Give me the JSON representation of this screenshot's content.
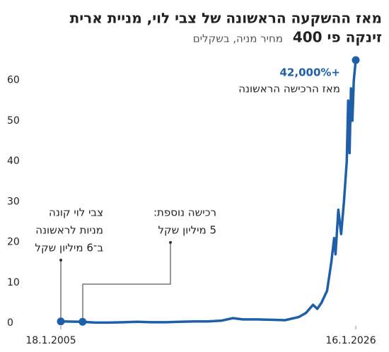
{
  "chart_data": {
    "type": "line",
    "title": [
      "מאז ההשקעה הראשונה של צבי לוי, מניית ארית",
      "זינקה פי 400"
    ],
    "subtitle": "מחיר מניה, בשקלים",
    "x": [
      2005.05,
      2006.6,
      2007.5,
      2008.5,
      2009.5,
      2010.5,
      2011.5,
      2012.5,
      2013.5,
      2014.5,
      2015.5,
      2016.5,
      2017.3,
      2018,
      2019,
      2020,
      2021,
      2022,
      2022.5,
      2023,
      2023.3,
      2023.6,
      2024,
      2024.3,
      2024.5,
      2024.6,
      2024.8,
      2025,
      2025.2,
      2025.4,
      2025.5,
      2025.6,
      2025.7,
      2025.8,
      2025.9,
      2026.04
    ],
    "series": [
      {
        "name": "ארית",
        "color": "#1f5fa8",
        "values": [
          0.4,
          0.3,
          0.1,
          0.1,
          0.2,
          0.3,
          0.2,
          0.2,
          0.3,
          0.4,
          0.4,
          0.6,
          1.2,
          0.9,
          0.9,
          0.8,
          0.7,
          1.5,
          2.5,
          4.5,
          3.5,
          5,
          8,
          15,
          21,
          17,
          28,
          22,
          30,
          40,
          55,
          42,
          58,
          50,
          60,
          65
        ]
      }
    ],
    "xlim": [
      2005.05,
      2026.04
    ],
    "xticks": [
      {
        "value": 2005.05,
        "label": "18.1.2005"
      },
      {
        "value": 2026.04,
        "label": "16.1.2026"
      }
    ],
    "ylim": [
      0,
      65
    ],
    "yticks": [
      0,
      10,
      20,
      30,
      40,
      50,
      60
    ],
    "annotations": [
      {
        "lines": [
          "+42,000%",
          "מאז הרכישה הראשונה"
        ]
      },
      {
        "lines": [
          "צבי לוי קונה",
          "מניות לראשונה",
          "ב־6 מיליון שקל"
        ]
      },
      {
        "lines": [
          "רכישה נוספת:",
          "5 מיליון שקל"
        ]
      }
    ]
  }
}
